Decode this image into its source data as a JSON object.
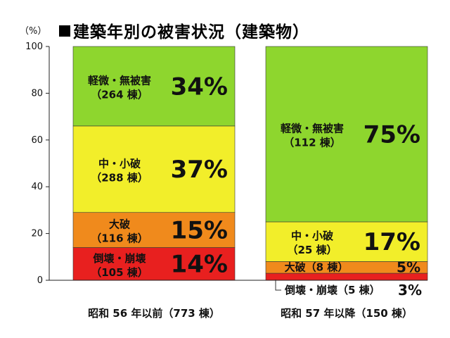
{
  "title": "建築年別の被害状況（建築物）",
  "chart_data": {
    "type": "bar",
    "stacked": true,
    "unit_label": "（%）",
    "ylim": [
      0,
      100
    ],
    "yticks": [
      "0",
      "20",
      "40",
      "60",
      "80",
      "100"
    ],
    "categories": [
      "昭和 56 年以前（773 棟）",
      "昭和 57 年以降（150 棟）"
    ],
    "series": [
      {
        "name": "倒壊・崩壊",
        "color": "#e8201f",
        "values": [
          14,
          3
        ],
        "counts": [
          "（105 棟）",
          "（5 棟）"
        ],
        "pct_labels": [
          "14%",
          "3%"
        ]
      },
      {
        "name": "大破",
        "color": "#f08a1c",
        "values": [
          15,
          5
        ],
        "counts": [
          "（116 棟）",
          "（8 棟）"
        ],
        "pct_labels": [
          "15%",
          "5%"
        ]
      },
      {
        "name": "中・小破",
        "color": "#f2ee2a",
        "values": [
          37,
          17
        ],
        "counts": [
          "（288 棟）",
          "（25 棟）"
        ],
        "pct_labels": [
          "37%",
          "17%"
        ]
      },
      {
        "name": "軽微・無被害",
        "color": "#8ed62e",
        "values": [
          34,
          75
        ],
        "counts": [
          "（264 棟）",
          "（112 棟）"
        ],
        "pct_labels": [
          "34%",
          "75%"
        ]
      }
    ]
  }
}
